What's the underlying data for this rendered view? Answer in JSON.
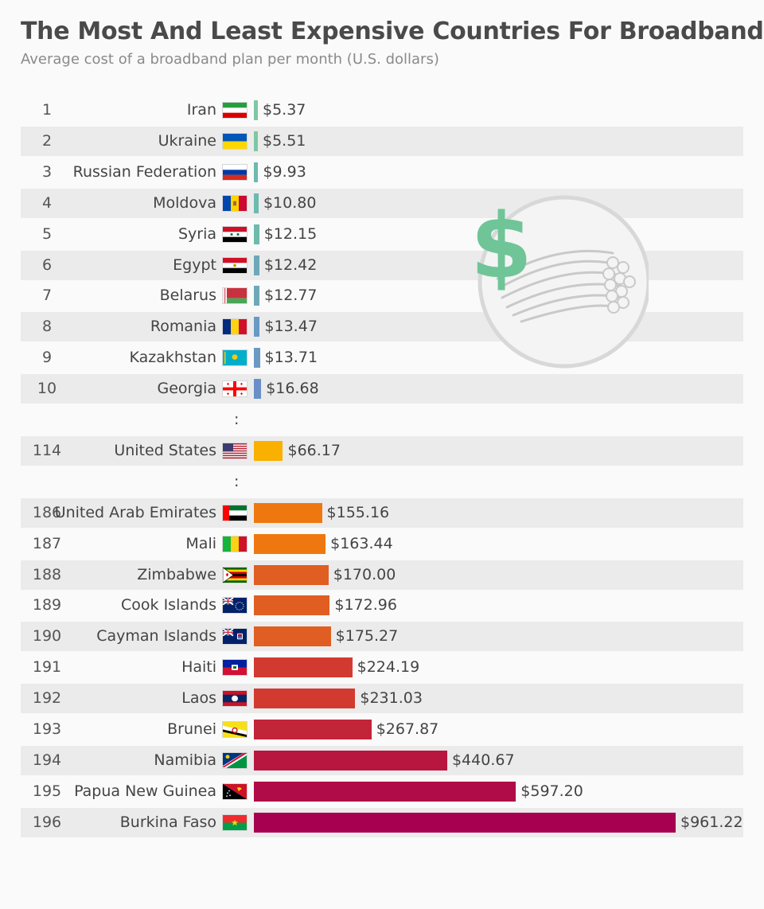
{
  "header": {
    "title": "The Most And Least Expensive Countries For Broadband",
    "subtitle": "Average cost of a broadband plan per month (U.S. dollars)"
  },
  "ellipsis": ":",
  "colors": {
    "row_shade": "#ebebeb",
    "cheap_teal": "#7cc8a4",
    "mid_blue": "#6a93c8",
    "usa_yellow": "#f9b000",
    "orange": "#ef7d0e",
    "red": "#d53a2e",
    "crimson": "#a80050"
  },
  "chart_data": {
    "type": "bar",
    "orientation": "horizontal",
    "title": "The Most And Least Expensive Countries For Broadband",
    "subtitle": "Average cost of a broadband plan per month (U.S. dollars)",
    "rows": [
      {
        "rank": "1",
        "country": "Iran",
        "flag": "iran",
        "value": 5.37,
        "label": "$5.37"
      },
      {
        "rank": "2",
        "country": "Ukraine",
        "flag": "ukraine",
        "value": 5.51,
        "label": "$5.51"
      },
      {
        "rank": "3",
        "country": "Russian Federation",
        "flag": "russia",
        "value": 9.93,
        "label": "$9.93"
      },
      {
        "rank": "4",
        "country": "Moldova",
        "flag": "moldova",
        "value": 10.8,
        "label": "$10.80"
      },
      {
        "rank": "5",
        "country": "Syria",
        "flag": "syria",
        "value": 12.15,
        "label": "$12.15"
      },
      {
        "rank": "6",
        "country": "Egypt",
        "flag": "egypt",
        "value": 12.42,
        "label": "$12.42"
      },
      {
        "rank": "7",
        "country": "Belarus",
        "flag": "belarus",
        "value": 12.77,
        "label": "$12.77"
      },
      {
        "rank": "8",
        "country": "Romania",
        "flag": "romania",
        "value": 13.47,
        "label": "$13.47"
      },
      {
        "rank": "9",
        "country": "Kazakhstan",
        "flag": "kazakhstan",
        "value": 13.71,
        "label": "$13.71"
      },
      {
        "rank": "10",
        "country": "Georgia",
        "flag": "georgia",
        "value": 16.68,
        "label": "$16.68"
      },
      {
        "gap": true
      },
      {
        "rank": "114",
        "country": "United States",
        "flag": "usa",
        "value": 66.17,
        "label": "$66.17"
      },
      {
        "gap": true
      },
      {
        "rank": "186",
        "country": "United Arab Emirates",
        "flag": "uae",
        "value": 155.16,
        "label": "$155.16"
      },
      {
        "rank": "187",
        "country": "Mali",
        "flag": "mali",
        "value": 163.44,
        "label": "$163.44"
      },
      {
        "rank": "188",
        "country": "Zimbabwe",
        "flag": "zimbabwe",
        "value": 170.0,
        "label": "$170.00"
      },
      {
        "rank": "189",
        "country": "Cook Islands",
        "flag": "cook",
        "value": 172.96,
        "label": "$172.96"
      },
      {
        "rank": "190",
        "country": "Cayman Islands",
        "flag": "cayman",
        "value": 175.27,
        "label": "$175.27"
      },
      {
        "rank": "191",
        "country": "Haiti",
        "flag": "haiti",
        "value": 224.19,
        "label": "$224.19"
      },
      {
        "rank": "192",
        "country": "Laos",
        "flag": "laos",
        "value": 231.03,
        "label": "$231.03"
      },
      {
        "rank": "193",
        "country": "Brunei",
        "flag": "brunei",
        "value": 267.87,
        "label": "$267.87"
      },
      {
        "rank": "194",
        "country": "Namibia",
        "flag": "namibia",
        "value": 440.67,
        "label": "$440.67"
      },
      {
        "rank": "195",
        "country": "Papua New Guinea",
        "flag": "png",
        "value": 597.2,
        "label": "$597.20"
      },
      {
        "rank": "196",
        "country": "Burkina Faso",
        "flag": "burkina",
        "value": 961.22,
        "label": "$961.22"
      }
    ],
    "xlim": [
      0,
      961.22
    ],
    "grid": false,
    "legend": "none"
  }
}
